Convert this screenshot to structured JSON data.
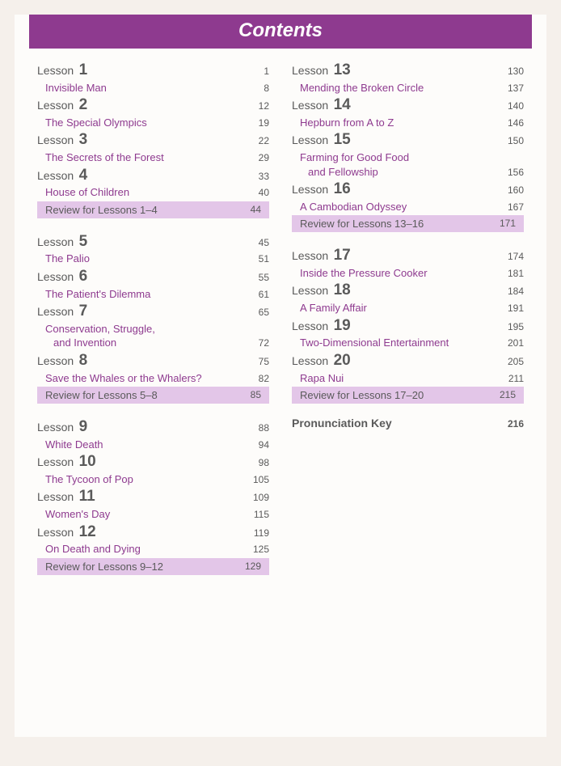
{
  "header": "Contents",
  "colors": {
    "header_bg": "#8e3a8f",
    "header_fg": "#ffffff",
    "review_bg": "#e3c6e8",
    "text_main": "#5a5a5a",
    "text_sub": "#8e3a8f",
    "page_bg": "#fdfcfa",
    "outer_bg": "#f5f0eb"
  },
  "left": {
    "g1": {
      "l1": {
        "word": "Lesson",
        "num": "1",
        "p1": "1",
        "sub": "Invisible Man",
        "p2": "8"
      },
      "l2": {
        "word": "Lesson",
        "num": "2",
        "p1": "12",
        "sub": "The Special Olympics",
        "p2": "19"
      },
      "l3": {
        "word": "Lesson",
        "num": "3",
        "p1": "22",
        "sub": "The Secrets of the Forest",
        "p2": "29"
      },
      "l4": {
        "word": "Lesson",
        "num": "4",
        "p1": "33",
        "sub": "House of Children",
        "p2": "40"
      },
      "review": {
        "label": "Review for Lessons 1–4",
        "page": "44"
      }
    },
    "g2": {
      "l5": {
        "word": "Lesson",
        "num": "5",
        "p1": "45",
        "sub": "The Palio",
        "p2": "51"
      },
      "l6": {
        "word": "Lesson",
        "num": "6",
        "p1": "55",
        "sub": "The Patient's Dilemma",
        "p2": "61"
      },
      "l7": {
        "word": "Lesson",
        "num": "7",
        "p1": "65",
        "sub1": "Conservation, Struggle,",
        "sub2": "and Invention",
        "p2": "72"
      },
      "l8": {
        "word": "Lesson",
        "num": "8",
        "p1": "75",
        "sub": "Save the Whales or the Whalers?",
        "p2": "82"
      },
      "review": {
        "label": "Review for Lessons 5–8",
        "page": "85"
      }
    },
    "g3": {
      "l9": {
        "word": "Lesson",
        "num": "9",
        "p1": "88",
        "sub": "White Death",
        "p2": "94"
      },
      "l10": {
        "word": "Lesson",
        "num": "10",
        "p1": "98",
        "sub": "The Tycoon of Pop",
        "p2": "105"
      },
      "l11": {
        "word": "Lesson",
        "num": "11",
        "p1": "109",
        "sub": "Women's Day",
        "p2": "115"
      },
      "l12": {
        "word": "Lesson",
        "num": "12",
        "p1": "119",
        "sub": "On Death and Dying",
        "p2": "125"
      },
      "review": {
        "label": "Review for Lessons 9–12",
        "page": "129"
      }
    }
  },
  "right": {
    "g4": {
      "l13": {
        "word": "Lesson",
        "num": "13",
        "p1": "130",
        "sub": "Mending the Broken Circle",
        "p2": "137"
      },
      "l14": {
        "word": "Lesson",
        "num": "14",
        "p1": "140",
        "sub": "Hepburn from A to Z",
        "p2": "146"
      },
      "l15": {
        "word": "Lesson",
        "num": "15",
        "p1": "150",
        "sub1": "Farming for Good Food",
        "sub2": "and Fellowship",
        "p2": "156"
      },
      "l16": {
        "word": "Lesson",
        "num": "16",
        "p1": "160",
        "sub": "A Cambodian Odyssey",
        "p2": "167"
      },
      "review": {
        "label": "Review for Lessons 13–16",
        "page": "171"
      }
    },
    "g5": {
      "l17": {
        "word": "Lesson",
        "num": "17",
        "p1": "174",
        "sub": "Inside the Pressure Cooker",
        "p2": "181"
      },
      "l18": {
        "word": "Lesson",
        "num": "18",
        "p1": "184",
        "sub": "A Family Affair",
        "p2": "191"
      },
      "l19": {
        "word": "Lesson",
        "num": "19",
        "p1": "195",
        "sub": "Two-Dimensional Entertainment",
        "p2": "201"
      },
      "l20": {
        "word": "Lesson",
        "num": "20",
        "p1": "205",
        "sub": "Rapa Nui",
        "p2": "211"
      },
      "review": {
        "label": "Review for Lessons 17–20",
        "page": "215"
      }
    },
    "pron": {
      "label": "Pronunciation Key",
      "page": "216"
    }
  }
}
